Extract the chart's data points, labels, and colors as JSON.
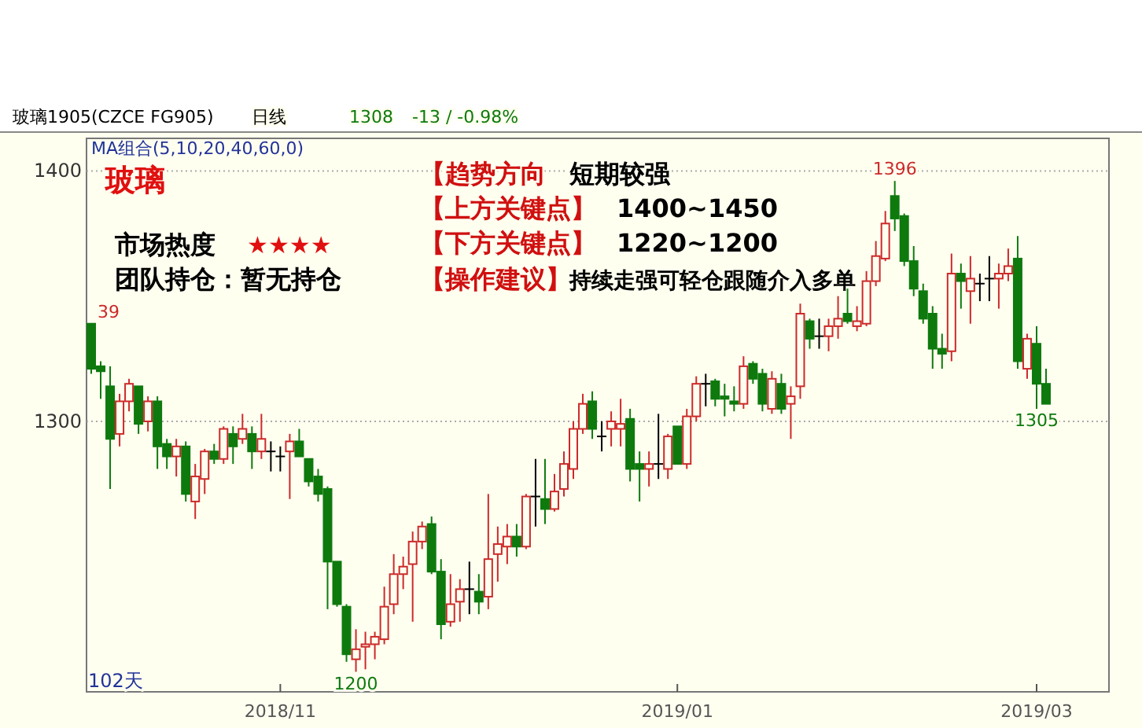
{
  "chart_data": {
    "type": "candlestick",
    "title": "玻璃1905(CZCE FG905)",
    "subtitle": "MA组合(5,10,20,40,60,0)",
    "categories": [
      null,
      null,
      null,
      null,
      null,
      null,
      null,
      null,
      null,
      null,
      null,
      null,
      null,
      null,
      null,
      null,
      null,
      null,
      null,
      null,
      "2018/11",
      null,
      null,
      null,
      null,
      null,
      null,
      null,
      null,
      null,
      null,
      null,
      null,
      null,
      null,
      null,
      null,
      null,
      null,
      null,
      null,
      null,
      null,
      null,
      null,
      null,
      null,
      null,
      null,
      null,
      null,
      null,
      null,
      null,
      null,
      null,
      null,
      null,
      null,
      null,
      null,
      null,
      "2019/01",
      null,
      null,
      null,
      null,
      null,
      null,
      null,
      null,
      null,
      null,
      null,
      null,
      null,
      null,
      null,
      null,
      null,
      null,
      null,
      null,
      null,
      null,
      null,
      null,
      null,
      null,
      null,
      null,
      null,
      null,
      null,
      null,
      null,
      null,
      null,
      null,
      null,
      "2019/03",
      null
    ],
    "ohlc": [
      [
        1339,
        1339,
        1319,
        1321
      ],
      [
        1322,
        1324,
        1309,
        1320
      ],
      [
        1314,
        1322,
        1273,
        1293
      ],
      [
        1295,
        1311,
        1290,
        1308
      ],
      [
        1308,
        1317,
        1304,
        1315
      ],
      [
        1314,
        1314,
        1295,
        1299
      ],
      [
        1300,
        1310,
        1296,
        1308
      ],
      [
        1308,
        1310,
        1281,
        1290
      ],
      [
        1291,
        1293,
        1281,
        1286
      ],
      [
        1286,
        1293,
        1278,
        1290
      ],
      [
        1290,
        1292,
        1268,
        1271
      ],
      [
        1268,
        1283,
        1261,
        1278
      ],
      [
        1277,
        1289,
        1271,
        1288
      ],
      [
        1288,
        1291,
        1283,
        1285
      ],
      [
        1285,
        1298,
        1283,
        1297
      ],
      [
        1295,
        1298,
        1283,
        1290
      ],
      [
        1293,
        1303,
        1291,
        1297
      ],
      [
        1295,
        1298,
        1281,
        1288
      ],
      [
        1288,
        1303,
        1285,
        1293
      ],
      [
        1288,
        1292,
        1280,
        1288
      ],
      [
        1286,
        1290,
        1280,
        1286
      ],
      [
        1288,
        1295,
        1269,
        1292
      ],
      [
        1292,
        1297,
        1286,
        1286
      ],
      [
        1285,
        1285,
        1274,
        1276
      ],
      [
        1278,
        1281,
        1268,
        1271
      ],
      [
        1273,
        1274,
        1225,
        1244
      ],
      [
        1244,
        1244,
        1226,
        1227
      ],
      [
        1226,
        1227,
        1204,
        1207
      ],
      [
        1205,
        1217,
        1200,
        1209
      ],
      [
        1210,
        1216,
        1201,
        1211
      ],
      [
        1211,
        1216,
        1205,
        1214
      ],
      [
        1213,
        1234,
        1211,
        1226
      ],
      [
        1227,
        1247,
        1223,
        1239
      ],
      [
        1239,
        1246,
        1233,
        1242
      ],
      [
        1243,
        1256,
        1220,
        1252
      ],
      [
        1252,
        1260,
        1249,
        1258
      ],
      [
        1259,
        1262,
        1239,
        1240
      ],
      [
        1240,
        1245,
        1213,
        1219
      ],
      [
        1220,
        1239,
        1218,
        1227
      ],
      [
        1228,
        1237,
        1220,
        1233
      ],
      [
        1233,
        1244,
        1223,
        1233
      ],
      [
        1232,
        1239,
        1223,
        1228
      ],
      [
        1230,
        1271,
        1225,
        1245
      ],
      [
        1247,
        1258,
        1236,
        1251
      ],
      [
        1250,
        1259,
        1243,
        1254
      ],
      [
        1254,
        1259,
        1246,
        1250
      ],
      [
        1250,
        1271,
        1249,
        1270
      ],
      [
        1270,
        1285,
        1258,
        1270
      ],
      [
        1269,
        1285,
        1259,
        1265
      ],
      [
        1265,
        1279,
        1264,
        1272
      ],
      [
        1273,
        1288,
        1270,
        1283
      ],
      [
        1281,
        1300,
        1277,
        1297
      ],
      [
        1297,
        1311,
        1295,
        1307
      ],
      [
        1308,
        1312,
        1293,
        1297
      ],
      [
        1294,
        1300,
        1288,
        1294
      ],
      [
        1297,
        1304,
        1290,
        1300
      ],
      [
        1297,
        1309,
        1290,
        1299
      ],
      [
        1301,
        1305,
        1276,
        1281
      ],
      [
        1283,
        1288,
        1268,
        1281
      ],
      [
        1281,
        1288,
        1274,
        1283
      ],
      [
        1283,
        1303,
        1277,
        1283
      ],
      [
        1281,
        1295,
        1277,
        1294
      ],
      [
        1298,
        1298,
        1283,
        1283
      ],
      [
        1283,
        1305,
        1281,
        1302
      ],
      [
        1302,
        1318,
        1300,
        1315
      ],
      [
        1315,
        1319,
        1306,
        1315
      ],
      [
        1316,
        1317,
        1306,
        1309
      ],
      [
        1310,
        1315,
        1302,
        1309
      ],
      [
        1308,
        1314,
        1304,
        1307
      ],
      [
        1307,
        1326,
        1305,
        1322
      ],
      [
        1323,
        1324,
        1315,
        1317
      ],
      [
        1319,
        1321,
        1304,
        1307
      ],
      [
        1305,
        1320,
        1303,
        1317
      ],
      [
        1315,
        1319,
        1303,
        1305
      ],
      [
        1307,
        1314,
        1293,
        1310
      ],
      [
        1314,
        1347,
        1309,
        1343
      ],
      [
        1340,
        1341,
        1329,
        1333
      ],
      [
        1334,
        1341,
        1329,
        1334
      ],
      [
        1334,
        1341,
        1328,
        1338
      ],
      [
        1338,
        1350,
        1333,
        1341
      ],
      [
        1343,
        1353,
        1339,
        1340
      ],
      [
        1338,
        1346,
        1336,
        1340
      ],
      [
        1339,
        1360,
        1338,
        1356
      ],
      [
        1356,
        1372,
        1354,
        1366
      ],
      [
        1365,
        1384,
        1364,
        1379
      ],
      [
        1390,
        1396,
        1376,
        1381
      ],
      [
        1382,
        1383,
        1362,
        1364
      ],
      [
        1364,
        1370,
        1350,
        1353
      ],
      [
        1352,
        1355,
        1339,
        1341
      ],
      [
        1343,
        1346,
        1321,
        1329
      ],
      [
        1329,
        1335,
        1321,
        1327
      ],
      [
        1328,
        1367,
        1324,
        1359
      ],
      [
        1359,
        1363,
        1345,
        1356
      ],
      [
        1352,
        1366,
        1339,
        1357
      ],
      [
        1355,
        1359,
        1348,
        1355
      ],
      [
        1357,
        1366,
        1348,
        1357
      ],
      [
        1357,
        1363,
        1345,
        1359
      ],
      [
        1359,
        1369,
        1356,
        1362
      ],
      [
        1365,
        1374,
        1321,
        1324
      ],
      [
        1321,
        1335,
        1317,
        1333
      ],
      [
        1331,
        1338,
        1305,
        1315
      ],
      [
        1315,
        1321,
        1307,
        1307
      ]
    ],
    "colors": [
      "#0e7a0e",
      "#0e7a0e",
      "#0e7a0e",
      "#cc2a2a",
      "#cc2a2a",
      "#0e7a0e",
      "#cc2a2a",
      "#0e7a0e",
      "#0e7a0e",
      "#cc2a2a",
      "#0e7a0e",
      "#cc2a2a",
      "#cc2a2a",
      "#0e7a0e",
      "#cc2a2a",
      "#0e7a0e",
      "#cc2a2a",
      "#0e7a0e",
      "#cc2a2a",
      "#000000",
      "#000000",
      "#cc2a2a",
      "#0e7a0e",
      "#0e7a0e",
      "#0e7a0e",
      "#0e7a0e",
      "#0e7a0e",
      "#0e7a0e",
      "#cc2a2a",
      "#cc2a2a",
      "#cc2a2a",
      "#cc2a2a",
      "#cc2a2a",
      "#cc2a2a",
      "#cc2a2a",
      "#cc2a2a",
      "#0e7a0e",
      "#0e7a0e",
      "#cc2a2a",
      "#cc2a2a",
      "#000000",
      "#0e7a0e",
      "#cc2a2a",
      "#cc2a2a",
      "#cc2a2a",
      "#0e7a0e",
      "#cc2a2a",
      "#000000",
      "#0e7a0e",
      "#cc2a2a",
      "#cc2a2a",
      "#cc2a2a",
      "#cc2a2a",
      "#0e7a0e",
      "#000000",
      "#cc2a2a",
      "#cc2a2a",
      "#0e7a0e",
      "#0e7a0e",
      "#cc2a2a",
      "#000000",
      "#cc2a2a",
      "#0e7a0e",
      "#cc2a2a",
      "#cc2a2a",
      "#000000",
      "#0e7a0e",
      "#0e7a0e",
      "#0e7a0e",
      "#cc2a2a",
      "#0e7a0e",
      "#0e7a0e",
      "#cc2a2a",
      "#0e7a0e",
      "#cc2a2a",
      "#cc2a2a",
      "#0e7a0e",
      "#000000",
      "#cc2a2a",
      "#cc2a2a",
      "#0e7a0e",
      "#cc2a2a",
      "#cc2a2a",
      "#cc2a2a",
      "#cc2a2a",
      "#0e7a0e",
      "#0e7a0e",
      "#0e7a0e",
      "#0e7a0e",
      "#0e7a0e",
      "#0e7a0e",
      "#cc2a2a",
      "#0e7a0e",
      "#cc2a2a",
      "#000000",
      "#000000",
      "#cc2a2a",
      "#cc2a2a",
      "#0e7a0e",
      "#cc2a2a",
      "#0e7a0e",
      "#0e7a0e"
    ],
    "ylim": [
      1192,
      1413
    ],
    "yticks": [
      1300,
      1400
    ],
    "grid": "y",
    "annotations": [
      "日线",
      "1308",
      "-13 / -0.98%",
      "玻璃",
      "市场热度",
      "★★★★",
      "团队持仓：暂无持仓",
      "【趋势方向",
      "短期较强",
      "【上方关键点】",
      "1400~1450",
      "【下方关键点】",
      "1220~1200",
      "【操作建议】",
      "持续走强可轻仓跟随介入多单",
      "102天",
      "39",
      "1396",
      "1200",
      "1305"
    ]
  }
}
